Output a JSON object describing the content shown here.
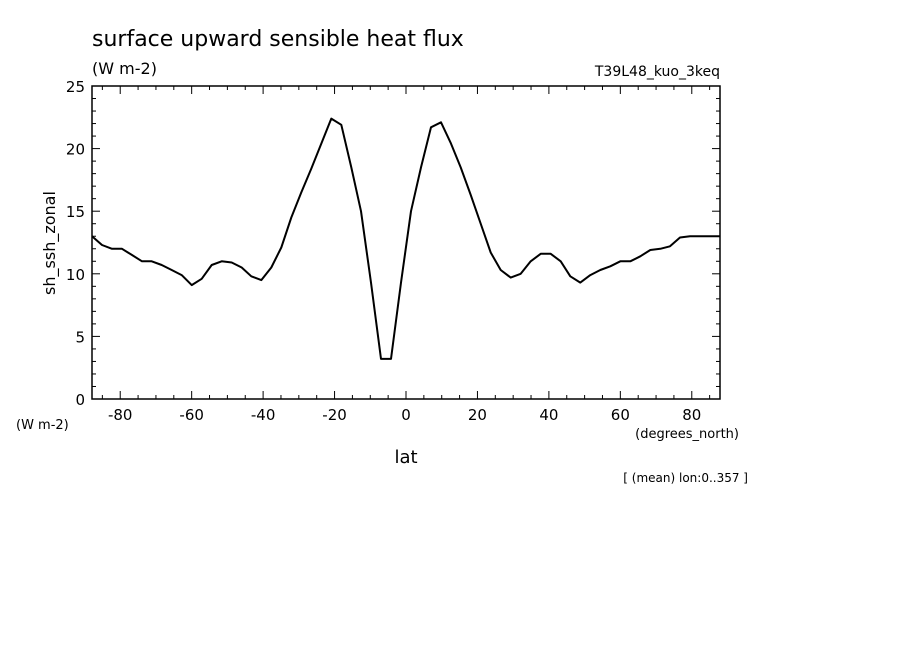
{
  "chart_data": {
    "type": "line",
    "title": "surface upward sensible heat flux",
    "subtitle": "(W m-2)",
    "run_label": "T39L48_kuo_3keq",
    "ylabel": "sh_ssh_zonal",
    "yunits": "(W m-2)",
    "xlabel": "lat",
    "xunits": "(degrees_north)",
    "footnote": "[ (mean) lon:0..357 ]",
    "xlim": [
      -87.9,
      87.9
    ],
    "ylim": [
      0,
      25
    ],
    "xticks": [
      -80,
      -60,
      -40,
      -20,
      0,
      20,
      40,
      60,
      80
    ],
    "yticks": [
      0,
      5,
      10,
      15,
      20,
      25
    ],
    "grid": false,
    "series": [
      {
        "x": [
          -87.9,
          -85.1,
          -82.3,
          -79.5,
          -76.7,
          -73.9,
          -71.2,
          -68.4,
          -65.6,
          -62.8,
          -60.0,
          -57.2,
          -54.4,
          -51.6,
          -48.8,
          -46.0,
          -43.3,
          -40.5,
          -37.7,
          -34.9,
          -32.1,
          -29.3,
          -26.5,
          -23.7,
          -20.9,
          -18.1,
          -15.3,
          -12.6,
          -9.8,
          -7.0,
          -4.2,
          -1.4,
          1.4,
          4.2,
          7.0,
          9.8,
          12.6,
          15.3,
          18.1,
          20.9,
          23.7,
          26.5,
          29.3,
          32.1,
          34.9,
          37.7,
          40.5,
          43.3,
          46.0,
          48.8,
          51.6,
          54.4,
          57.2,
          60.0,
          62.8,
          65.6,
          68.4,
          71.2,
          73.9,
          76.7,
          79.5,
          82.3,
          85.1,
          87.9
        ],
        "values": [
          13.0,
          12.3,
          12.0,
          12.0,
          11.5,
          11.0,
          11.0,
          10.7,
          10.3,
          9.9,
          9.1,
          9.6,
          10.7,
          11.0,
          10.9,
          10.5,
          9.8,
          9.5,
          10.5,
          12.1,
          14.5,
          16.5,
          18.4,
          20.4,
          22.4,
          21.9,
          18.5,
          15.0,
          9.3,
          3.2,
          3.2,
          9.3,
          15.0,
          18.5,
          21.7,
          22.1,
          20.4,
          18.5,
          16.3,
          14.0,
          11.7,
          10.3,
          9.7,
          10.0,
          11.0,
          11.6,
          11.6,
          11.0,
          9.8,
          9.3,
          9.9,
          10.3,
          10.6,
          11.0,
          11.0,
          11.4,
          11.9,
          12.0,
          12.2,
          12.9,
          13.0,
          13.0,
          13.0,
          13.0
        ],
        "color": "#000000"
      }
    ]
  }
}
